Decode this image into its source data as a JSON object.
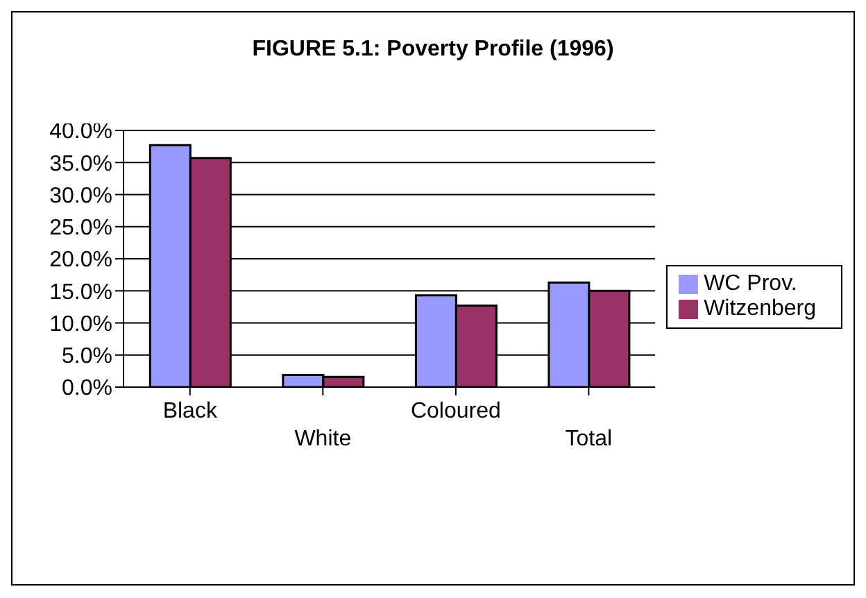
{
  "chart_data": {
    "type": "bar",
    "title": "FIGURE 5.1:  Poverty Profile (1996)",
    "categories": [
      "Black",
      "White",
      "Coloured",
      "Total"
    ],
    "series": [
      {
        "name": "WC Prov.",
        "color": "#9999ff",
        "values": [
          37.7,
          1.9,
          14.3,
          16.3
        ]
      },
      {
        "name": "Witzenberg",
        "color": "#993366",
        "values": [
          35.7,
          1.6,
          12.7,
          15.0
        ]
      }
    ],
    "ylim": [
      0,
      40
    ],
    "yticks": [
      {
        "value": 0,
        "label": "0.0%"
      },
      {
        "value": 5,
        "label": "5.0%"
      },
      {
        "value": 10,
        "label": "10.0%"
      },
      {
        "value": 15,
        "label": "15.0%"
      },
      {
        "value": 20,
        "label": "20.0%"
      },
      {
        "value": 25,
        "label": "25.0%"
      },
      {
        "value": 30,
        "label": "30.0%"
      },
      {
        "value": 35,
        "label": "35.0%"
      },
      {
        "value": 40,
        "label": "40.0%"
      }
    ],
    "grid": "y",
    "legend": "right"
  }
}
